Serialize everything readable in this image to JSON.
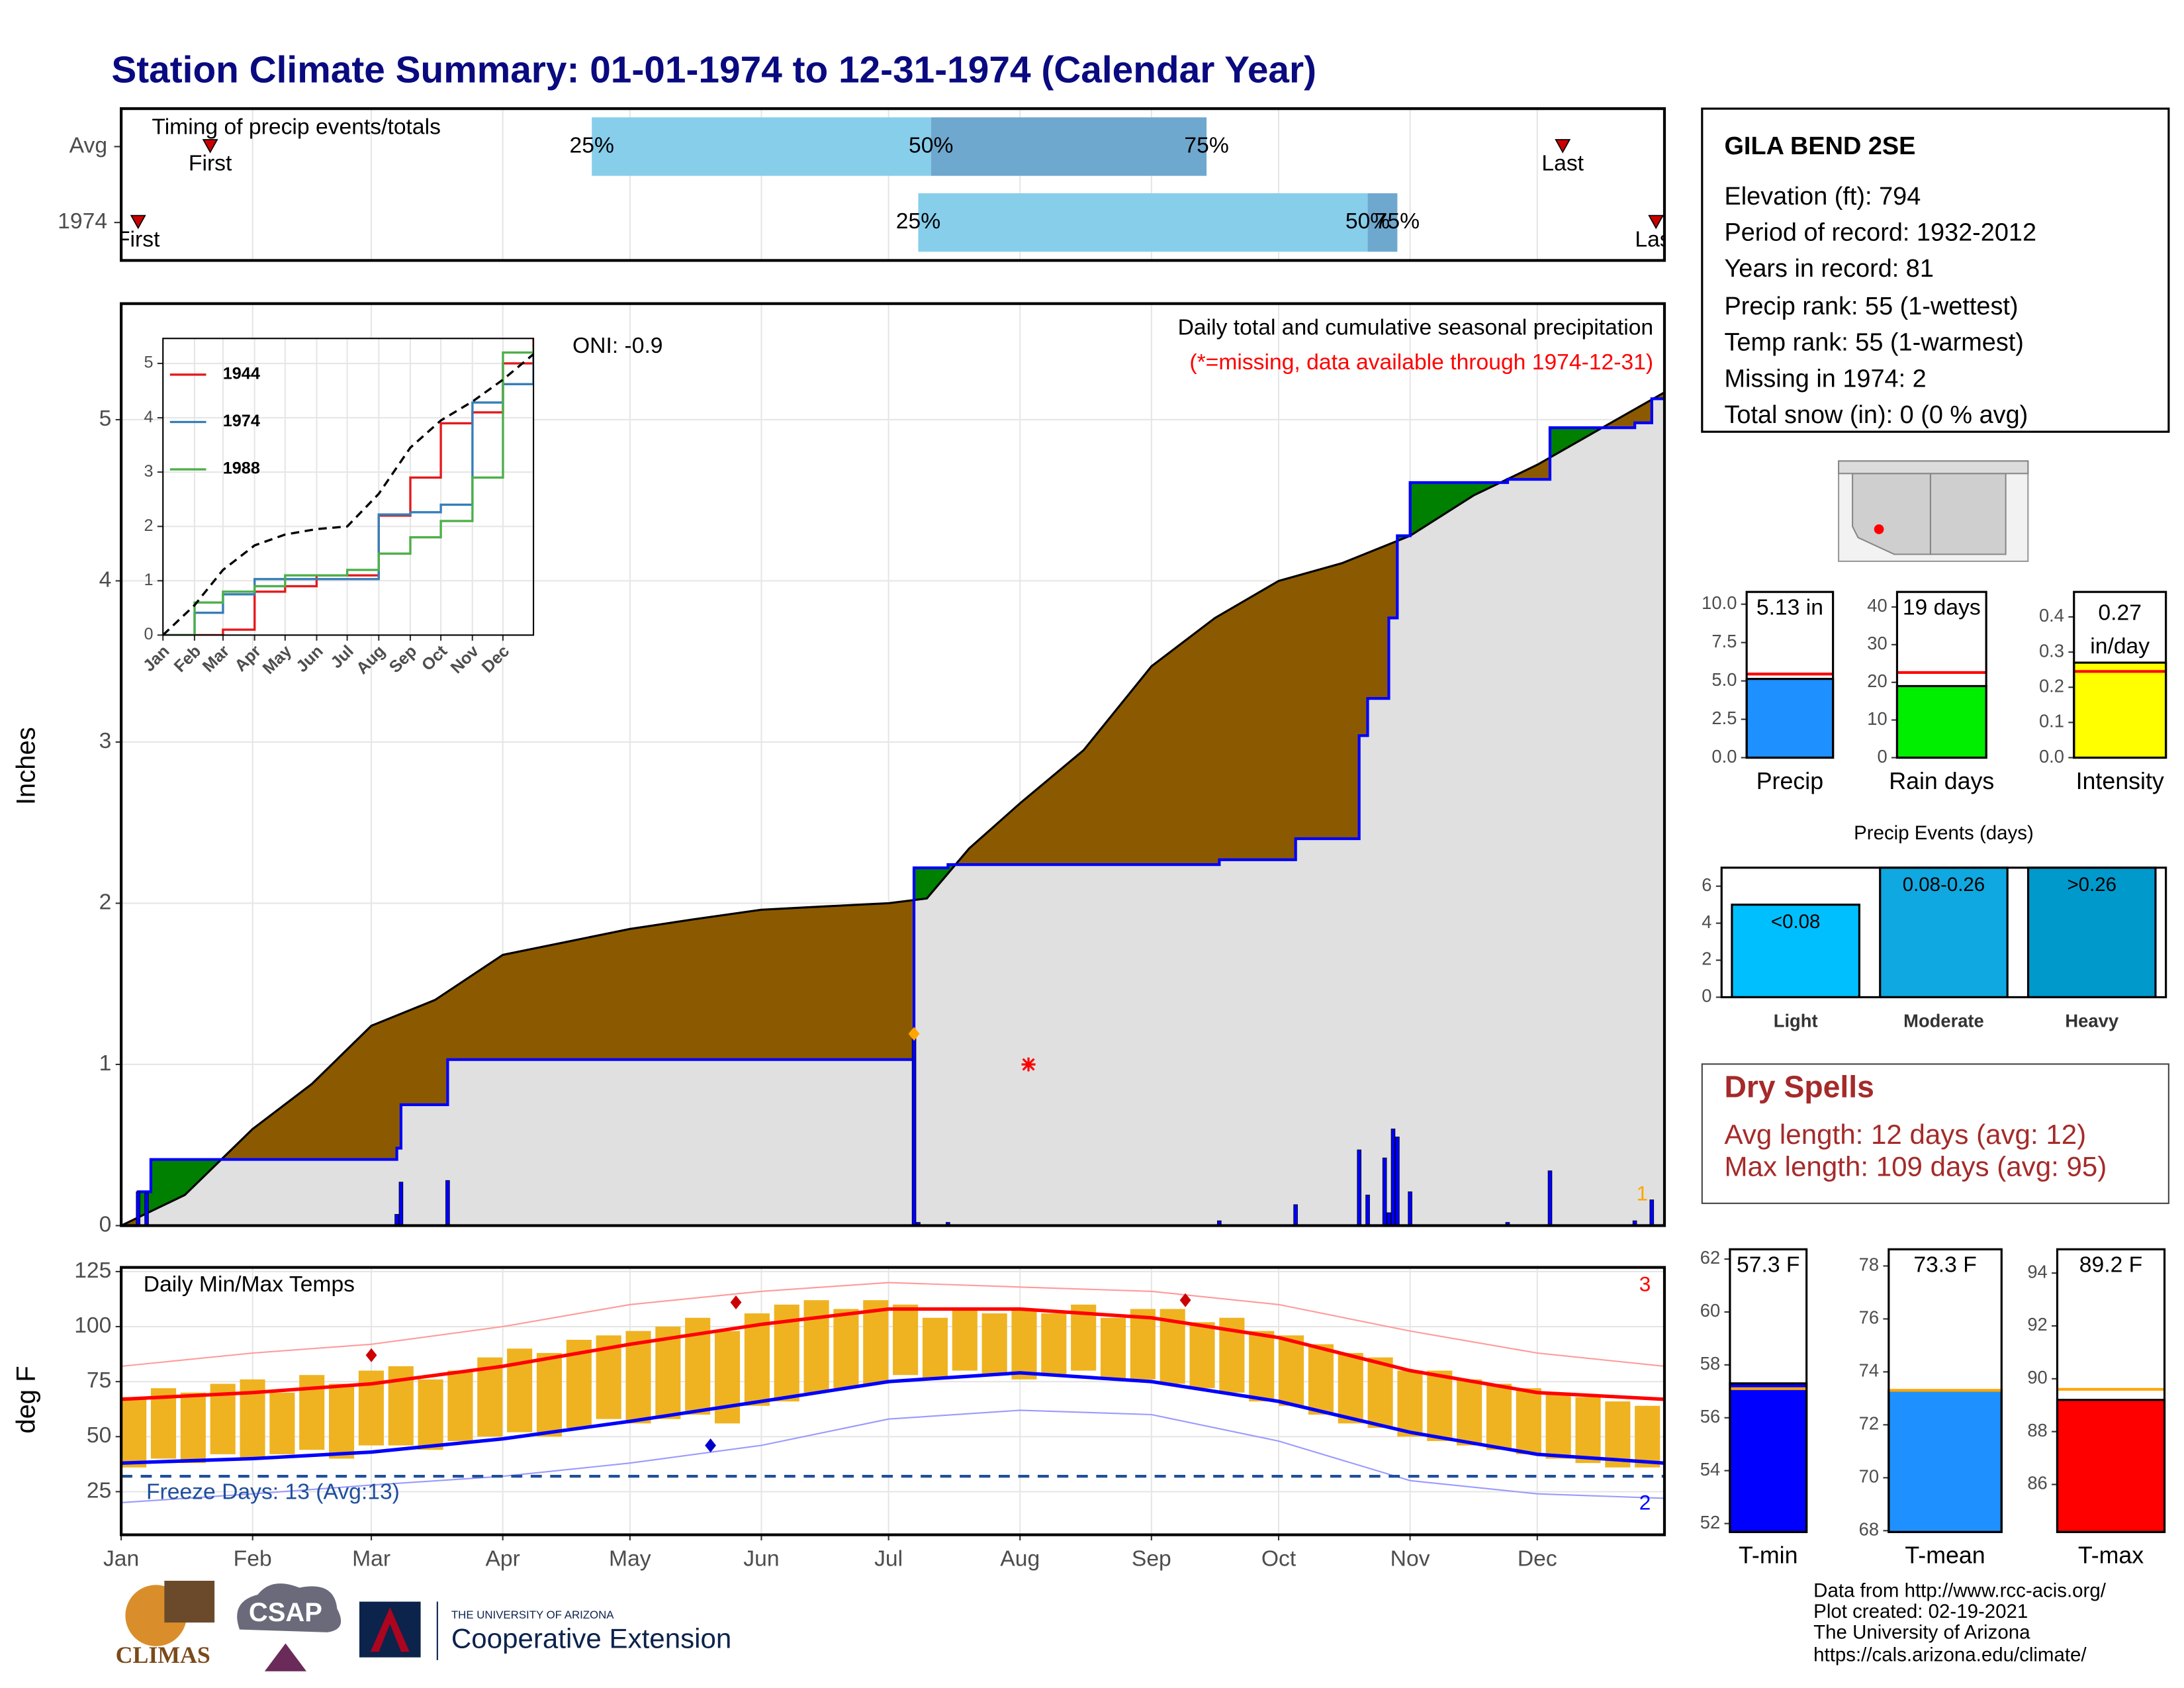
{
  "title": "Station Climate Summary: 01-01-1974 to 12-31-1974 (Calendar Year)",
  "station": {
    "name": "GILA BEND 2SE",
    "lines": [
      "Elevation (ft): 794",
      "Period of record: 1932-2012",
      "Years in record: 81",
      "Precip rank: 55 (1-wettest)",
      "Temp rank: 55 (1-warmest)",
      "Missing in 1974: 2",
      "Total snow (in): 0 (0 % avg)"
    ]
  },
  "dry_spells": {
    "title": "Dry Spells",
    "lines": [
      "Avg length: 12 days (avg: 12)",
      "Max length: 109 days (avg: 95)"
    ]
  },
  "footer": [
    "Data from http://www.rcc-acis.org/",
    "Plot created: 02-19-2021",
    "The University of Arizona",
    "https://cals.arizona.edu/climate/"
  ],
  "logos": [
    "CLIMAS",
    "CSAP",
    "THE UNIVERSITY OF ARIZONA",
    "Cooperative Extension"
  ],
  "chart_data": [
    {
      "type": "timing",
      "title": "Timing of precip events/totals",
      "categories": [
        "Avg",
        "1974"
      ],
      "rows": [
        {
          "first": 21,
          "q25": 111,
          "q50": 191,
          "q75": 256,
          "last": 340
        },
        {
          "first": 4,
          "q25": 188,
          "q50": 294,
          "q75": 301,
          "last": 362
        }
      ],
      "labels": {
        "first": "First",
        "last": "Last",
        "q25": "25%",
        "q50": "50%",
        "q75": "75%"
      },
      "colors": [
        "#87ceeb",
        "#6fa8cf"
      ],
      "marker_color": "#cc0000",
      "xlim": [
        0,
        364
      ],
      "xticks": [
        0,
        31,
        59,
        90,
        120,
        151,
        181,
        212,
        243,
        273,
        304,
        334
      ],
      "grid": true
    },
    {
      "type": "area",
      "title": "Daily total and cumulative seasonal precipitation",
      "subtitle": "(*=missing, data available through 1974-12-31)",
      "annotation": "ONI: -0.9",
      "ylabel": "Inches",
      "missing_count": 1,
      "xlim": [
        0,
        364
      ],
      "xticks": [
        0,
        31,
        59,
        90,
        120,
        151,
        181,
        212,
        243,
        273,
        304,
        334
      ],
      "ylim": [
        0,
        5.72
      ],
      "yticks": [
        0,
        1,
        2,
        3,
        4,
        5
      ],
      "grid": true,
      "above_color": "#008000",
      "below_color": "#8b5a00",
      "base_color": "#e0e0e0",
      "average": {
        "color": "#000000",
        "x": [
          0,
          15,
          31,
          45,
          59,
          74,
          90,
          105,
          120,
          135,
          151,
          166,
          181,
          190,
          200,
          212,
          227,
          243,
          258,
          273,
          288,
          304,
          319,
          334,
          348,
          364
        ],
        "values": [
          0,
          0.19,
          0.6,
          0.88,
          1.24,
          1.4,
          1.68,
          1.76,
          1.84,
          1.9,
          1.96,
          1.98,
          2.0,
          2.03,
          2.34,
          2.62,
          2.95,
          3.47,
          3.77,
          4.0,
          4.11,
          4.28,
          4.53,
          4.72,
          4.93,
          5.17
        ]
      },
      "observed": {
        "color": "#0000ff",
        "x": [
          0,
          4,
          7,
          65,
          66,
          77,
          187,
          195,
          259,
          277,
          292,
          294,
          299,
          301,
          304,
          327,
          337,
          357,
          361,
          364
        ],
        "values": [
          0,
          0.21,
          0.41,
          0.48,
          0.75,
          1.03,
          2.22,
          2.24,
          2.27,
          2.4,
          3.04,
          3.27,
          3.77,
          4.28,
          4.61,
          4.63,
          4.95,
          4.98,
          5.13,
          5.13
        ]
      },
      "daily": {
        "color": "#0000ff",
        "x": [
          4,
          6,
          65,
          66,
          77,
          187,
          188,
          195,
          259,
          277,
          292,
          294,
          298,
          299,
          300,
          301,
          304,
          327,
          337,
          357,
          361
        ],
        "values": [
          0.21,
          0.2,
          0.07,
          0.27,
          0.28,
          1.19,
          0.02,
          0.02,
          0.03,
          0.13,
          0.47,
          0.19,
          0.42,
          0.08,
          0.6,
          0.55,
          0.21,
          0.02,
          0.34,
          0.03,
          0.16
        ]
      },
      "missing": {
        "x": 214,
        "y": 1,
        "color": "#ff0000"
      },
      "max_day": {
        "x": 187,
        "y": 1.19,
        "color": "#ffa500"
      }
    },
    {
      "type": "line",
      "xlim": [
        0,
        364
      ],
      "ylim": [
        0,
        5.46
      ],
      "yticks": [
        0,
        1,
        2,
        3,
        4,
        5
      ],
      "xticks": [
        {
          "value": 0,
          "label": "Jan"
        },
        {
          "value": 31,
          "label": "Feb"
        },
        {
          "value": 59,
          "label": "Mar"
        },
        {
          "value": 90,
          "label": "Apr"
        },
        {
          "value": 120,
          "label": "May"
        },
        {
          "value": 151,
          "label": "Jun"
        },
        {
          "value": 181,
          "label": "Jul"
        },
        {
          "value": 212,
          "label": "Aug"
        },
        {
          "value": 243,
          "label": "Sep"
        },
        {
          "value": 273,
          "label": "Oct"
        },
        {
          "value": 304,
          "label": "Nov"
        },
        {
          "value": 334,
          "label": "Dec"
        }
      ],
      "grid": true,
      "x": [
        0,
        31,
        59,
        90,
        120,
        151,
        181,
        212,
        243,
        273,
        304,
        334,
        364
      ],
      "series": [
        {
          "name": "1944",
          "color": "#e41a1c",
          "step": true,
          "values": [
            0,
            0,
            0.1,
            0.8,
            0.9,
            1.1,
            1.1,
            2.2,
            2.9,
            3.9,
            4.1,
            5.0,
            5.5
          ]
        },
        {
          "name": "1974",
          "color": "#377eb8",
          "step": true,
          "values": [
            0,
            0.41,
            0.75,
            1.03,
            1.03,
            1.03,
            1.03,
            2.22,
            2.26,
            2.4,
            4.28,
            4.62,
            5.13
          ]
        },
        {
          "name": "1988",
          "color": "#4daf4a",
          "step": true,
          "values": [
            0,
            0.6,
            0.8,
            0.9,
            1.1,
            1.1,
            1.2,
            1.5,
            1.8,
            2.1,
            2.9,
            5.2,
            5.3
          ]
        },
        {
          "color": "#000000",
          "dash": true,
          "values": [
            0,
            0.55,
            1.2,
            1.65,
            1.85,
            1.95,
            2.0,
            2.6,
            3.45,
            3.95,
            4.3,
            4.7,
            5.17
          ]
        }
      ]
    },
    {
      "type": "range",
      "title": "Daily Min/Max Temps",
      "ylabel": "deg F",
      "freeze_label": "Freeze Days: 13 (Avg:13)",
      "freeze": 32,
      "high_count": 3,
      "low_count": 2,
      "xlim": [
        0,
        364
      ],
      "ylim": [
        5.4,
        126.9
      ],
      "yticks": [
        25,
        50,
        75,
        100,
        125
      ],
      "grid": true,
      "xticks": [
        {
          "value": 0,
          "label": "Jan"
        },
        {
          "value": 31,
          "label": "Feb"
        },
        {
          "value": 59,
          "label": "Mar"
        },
        {
          "value": 90,
          "label": "Apr"
        },
        {
          "value": 120,
          "label": "May"
        },
        {
          "value": 151,
          "label": "Jun"
        },
        {
          "value": 181,
          "label": "Jul"
        },
        {
          "value": 212,
          "label": "Aug"
        },
        {
          "value": 243,
          "label": "Sep"
        },
        {
          "value": 273,
          "label": "Oct"
        },
        {
          "value": 304,
          "label": "Nov"
        },
        {
          "value": 334,
          "label": "Dec"
        }
      ],
      "bars": {
        "color": "#efb321",
        "x": [
          0,
          7,
          14,
          21,
          28,
          35,
          42,
          49,
          56,
          63,
          70,
          77,
          84,
          91,
          98,
          105,
          112,
          119,
          126,
          133,
          140,
          147,
          154,
          161,
          168,
          175,
          182,
          189,
          196,
          203,
          210,
          217,
          224,
          231,
          238,
          245,
          252,
          259,
          266,
          273,
          280,
          287,
          294,
          301,
          308,
          315,
          322,
          329,
          336,
          343,
          350,
          357
        ],
        "low": [
          36,
          40,
          38,
          42,
          40,
          42,
          44,
          40,
          46,
          46,
          44,
          48,
          50,
          52,
          50,
          54,
          58,
          56,
          58,
          60,
          56,
          64,
          66,
          70,
          72,
          74,
          78,
          76,
          80,
          78,
          76,
          78,
          80,
          76,
          76,
          74,
          72,
          70,
          66,
          64,
          60,
          56,
          54,
          50,
          48,
          46,
          44,
          42,
          40,
          38,
          36,
          36
        ],
        "high": [
          68,
          72,
          70,
          74,
          76,
          70,
          78,
          74,
          80,
          82,
          76,
          80,
          86,
          90,
          88,
          94,
          96,
          98,
          100,
          104,
          98,
          106,
          110,
          112,
          108,
          112,
          110,
          104,
          108,
          106,
          108,
          106,
          110,
          104,
          108,
          108,
          102,
          104,
          98,
          96,
          92,
          88,
          86,
          80,
          80,
          76,
          74,
          72,
          70,
          68,
          66,
          64
        ]
      },
      "x": [
        0,
        31,
        59,
        90,
        120,
        151,
        181,
        212,
        243,
        273,
        304,
        334,
        364
      ],
      "series": [
        {
          "color": "#ff9a9a",
          "width": 1,
          "values": [
            82,
            88,
            92,
            100,
            110,
            116,
            120,
            118,
            116,
            110,
            98,
            88,
            82
          ]
        },
        {
          "color": "#9a9aff",
          "width": 1,
          "values": [
            20,
            24,
            28,
            32,
            38,
            46,
            58,
            62,
            60,
            48,
            30,
            24,
            22
          ]
        },
        {
          "color": "#ff0000",
          "width": 2.5,
          "values": [
            67,
            70,
            74,
            82,
            92,
            101,
            108,
            108,
            104,
            95,
            80,
            70,
            67
          ]
        },
        {
          "color": "#0000ff",
          "width": 2.5,
          "values": [
            38,
            40,
            43,
            49,
            57,
            66,
            75,
            79,
            75,
            66,
            52,
            42,
            38
          ]
        }
      ],
      "record_highs": {
        "color": "#cc0000",
        "x": [
          59,
          145,
          251
        ],
        "values": [
          87,
          111,
          112
        ]
      },
      "record_lows": {
        "color": "#0000cc",
        "x": [
          139
        ],
        "values": [
          46
        ]
      }
    },
    {
      "type": "bar",
      "categories": [
        "Precip"
      ],
      "values": [
        5.13
      ],
      "value_labels": [
        "5.13 in"
      ],
      "color": "#1e90ff",
      "average": [
        5.45
      ],
      "average_color": "#ff0000",
      "ylim": [
        0,
        10.8
      ],
      "yticks": [
        {
          "value": 0,
          "label": "0.0"
        },
        {
          "value": 2.5,
          "label": "2.5"
        },
        {
          "value": 5,
          "label": "5.0"
        },
        {
          "value": 7.5,
          "label": "7.5"
        },
        {
          "value": 10,
          "label": "10.0"
        }
      ]
    },
    {
      "type": "bar",
      "categories": [
        "Rain days"
      ],
      "values": [
        19
      ],
      "value_labels": [
        "19 days"
      ],
      "color": "#00ee00",
      "average": [
        22.6
      ],
      "average_color": "#ff0000",
      "ylim": [
        0,
        44
      ],
      "yticks": [
        0,
        10,
        20,
        30,
        40
      ]
    },
    {
      "type": "bar",
      "categories": [
        "Intensity"
      ],
      "values": [
        0.27
      ],
      "value_labels": [
        "0.27"
      ],
      "value_unit": "in/day",
      "color": "#ffff00",
      "average": [
        0.245
      ],
      "average_color": "#ff0000",
      "ylim": [
        0,
        0.471
      ],
      "yticks": [
        {
          "value": 0,
          "label": "0.0"
        },
        0.1,
        0.2,
        0.3,
        0.4
      ]
    },
    {
      "type": "bar",
      "title": "Precip Events (days)",
      "categories": [
        "Light",
        "Moderate",
        "Heavy"
      ],
      "values": [
        5,
        7,
        7
      ],
      "bin_labels": [
        "<0.08",
        "0.08-0.26",
        ">0.26"
      ],
      "colors": [
        "#00bfff",
        "#10a8e0",
        "#0099cc"
      ],
      "ylim": [
        0,
        7
      ],
      "yticks": [
        0,
        2,
        4,
        6
      ]
    },
    {
      "type": "bar",
      "categories": [
        "T-min"
      ],
      "values": [
        57.3
      ],
      "value_labels": [
        "57.3 F"
      ],
      "color": "#0000ff",
      "average": [
        57.1
      ],
      "average_color": "#ffa500",
      "ylim": [
        51.68,
        62.37
      ],
      "yticks": [
        52,
        54,
        56,
        58,
        60,
        62
      ]
    },
    {
      "type": "bar",
      "categories": [
        "T-mean"
      ],
      "values": [
        73.3
      ],
      "value_labels": [
        "73.3 F"
      ],
      "color": "#1e90ff",
      "average": [
        73.3
      ],
      "average_color": "#ffa500",
      "ylim": [
        67.95,
        78.63
      ],
      "yticks": [
        68,
        70,
        72,
        74,
        76,
        78
      ]
    },
    {
      "type": "bar",
      "categories": [
        "T-max"
      ],
      "values": [
        89.2
      ],
      "value_labels": [
        "89.2 F"
      ],
      "color": "#ff0000",
      "average": [
        89.6
      ],
      "average_color": "#ffa500",
      "ylim": [
        84.2,
        94.9
      ],
      "yticks": [
        86,
        88,
        90,
        92,
        94
      ]
    }
  ]
}
